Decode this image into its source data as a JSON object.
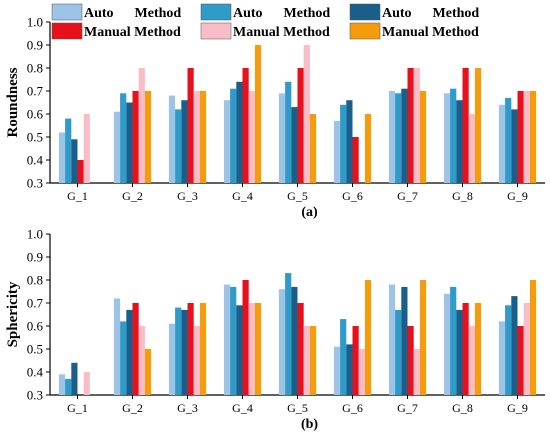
{
  "legend": {
    "entries": [
      {
        "label": "Auto      Method",
        "color": "#9dc3e6"
      },
      {
        "label": "Manual Method",
        "color": "#e8101a"
      },
      {
        "label": "Auto      Method",
        "color": "#2e9bc9"
      },
      {
        "label": "Manual Method",
        "color": "#f9bdc8"
      },
      {
        "label": "Auto      Method",
        "color": "#1a5f8c"
      },
      {
        "label": "Manual Method",
        "color": "#f59c0c"
      }
    ]
  },
  "series_colors": [
    "#9dc3e6",
    "#2e9bc9",
    "#1a5f8c",
    "#e8101a",
    "#f9bdc8",
    "#f59c0c"
  ],
  "chart_data": [
    {
      "type": "bar",
      "panel_label": "(a)",
      "ylabel": "Roundness",
      "ylim": [
        0.3,
        1.0
      ],
      "yticks": [
        "0.3",
        "0.4",
        "0.5",
        "0.6",
        "0.7",
        "0.8",
        "0.9",
        "1.0"
      ],
      "categories": [
        "G_1",
        "G_2",
        "G_3",
        "G_4",
        "G_5",
        "G_6",
        "G_7",
        "G_8",
        "G_9"
      ],
      "series": [
        {
          "values": [
            0.52,
            0.61,
            0.68,
            0.66,
            0.69,
            0.57,
            0.7,
            0.69,
            0.64
          ]
        },
        {
          "values": [
            0.58,
            0.69,
            0.62,
            0.71,
            0.74,
            0.64,
            0.69,
            0.71,
            0.67
          ]
        },
        {
          "values": [
            0.49,
            0.65,
            0.66,
            0.74,
            0.63,
            0.66,
            0.71,
            0.66,
            0.62
          ]
        },
        {
          "values": [
            0.4,
            0.7,
            0.8,
            0.8,
            0.8,
            0.5,
            0.8,
            0.8,
            0.7
          ]
        },
        {
          "values": [
            0.6,
            0.8,
            0.7,
            0.7,
            0.9,
            0.3,
            0.8,
            0.6,
            0.7
          ]
        },
        {
          "values": [
            0.3,
            0.7,
            0.7,
            0.9,
            0.6,
            0.6,
            0.7,
            0.8,
            0.7
          ]
        }
      ]
    },
    {
      "type": "bar",
      "panel_label": "(b)",
      "ylabel": "Sphericity",
      "ylim": [
        0.3,
        1.0
      ],
      "yticks": [
        "0.3",
        "0.4",
        "0.5",
        "0.6",
        "0.7",
        "0.8",
        "0.9",
        "1.0"
      ],
      "categories": [
        "G_1",
        "G_2",
        "G_3",
        "G_4",
        "G_5",
        "G_6",
        "G_7",
        "G_8",
        "G_9"
      ],
      "series": [
        {
          "values": [
            0.39,
            0.72,
            0.61,
            0.78,
            0.76,
            0.51,
            0.78,
            0.74,
            0.62
          ]
        },
        {
          "values": [
            0.37,
            0.62,
            0.68,
            0.77,
            0.83,
            0.63,
            0.67,
            0.77,
            0.69
          ]
        },
        {
          "values": [
            0.44,
            0.67,
            0.67,
            0.69,
            0.77,
            0.52,
            0.77,
            0.67,
            0.73
          ]
        },
        {
          "values": [
            0.3,
            0.7,
            0.7,
            0.8,
            0.7,
            0.6,
            0.6,
            0.7,
            0.6
          ]
        },
        {
          "values": [
            0.4,
            0.6,
            0.6,
            0.7,
            0.6,
            0.5,
            0.5,
            0.6,
            0.7
          ]
        },
        {
          "values": [
            0.3,
            0.5,
            0.7,
            0.7,
            0.6,
            0.8,
            0.8,
            0.7,
            0.8
          ]
        }
      ]
    }
  ]
}
